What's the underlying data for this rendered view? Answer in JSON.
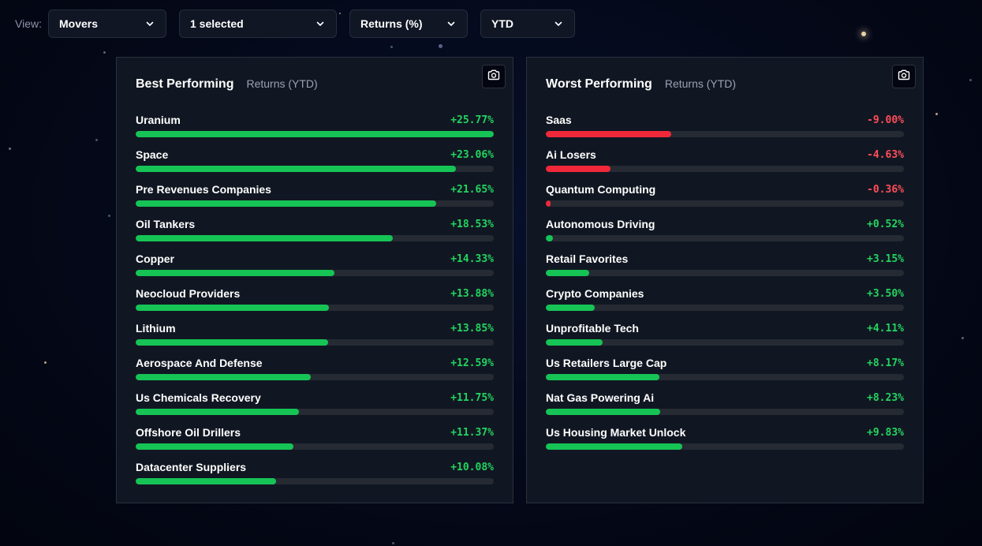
{
  "toolbar": {
    "view_label": "View:",
    "dropdowns": [
      {
        "name": "view-dropdown",
        "value": "Movers"
      },
      {
        "name": "selection-dropdown",
        "value": "1 selected"
      },
      {
        "name": "metric-dropdown",
        "value": "Returns (%)"
      },
      {
        "name": "period-dropdown",
        "value": "YTD"
      }
    ]
  },
  "colors": {
    "positive": "#16c456",
    "negative": "#f0283a",
    "positive_text": "#22d460",
    "negative_text": "#ff4d5a"
  },
  "best": {
    "title": "Best Performing",
    "subtitle": "Returns (YTD)",
    "camera_icon": "camera-icon",
    "max_abs": 25.77,
    "items": [
      {
        "name": "Uranium",
        "value": 25.77,
        "label": "+25.77%"
      },
      {
        "name": "Space",
        "value": 23.06,
        "label": "+23.06%"
      },
      {
        "name": "Pre Revenues Companies",
        "value": 21.65,
        "label": "+21.65%"
      },
      {
        "name": "Oil Tankers",
        "value": 18.53,
        "label": "+18.53%"
      },
      {
        "name": "Copper",
        "value": 14.33,
        "label": "+14.33%"
      },
      {
        "name": "Neocloud Providers",
        "value": 13.88,
        "label": "+13.88%"
      },
      {
        "name": "Lithium",
        "value": 13.85,
        "label": "+13.85%"
      },
      {
        "name": "Aerospace And Defense",
        "value": 12.59,
        "label": "+12.59%"
      },
      {
        "name": "Us Chemicals Recovery",
        "value": 11.75,
        "label": "+11.75%"
      },
      {
        "name": "Offshore Oil Drillers",
        "value": 11.37,
        "label": "+11.37%"
      },
      {
        "name": "Datacenter Suppliers",
        "value": 10.08,
        "label": "+10.08%"
      }
    ]
  },
  "worst": {
    "title": "Worst Performing",
    "subtitle": "Returns (YTD)",
    "camera_icon": "camera-icon",
    "max_abs": 25.77,
    "items": [
      {
        "name": "Saas",
        "value": -9.0,
        "label": "-9.00%"
      },
      {
        "name": "Ai Losers",
        "value": -4.63,
        "label": "-4.63%"
      },
      {
        "name": "Quantum Computing",
        "value": -0.36,
        "label": "-0.36%"
      },
      {
        "name": "Autonomous Driving",
        "value": 0.52,
        "label": "+0.52%"
      },
      {
        "name": "Retail Favorites",
        "value": 3.15,
        "label": "+3.15%"
      },
      {
        "name": "Crypto Companies",
        "value": 3.5,
        "label": "+3.50%"
      },
      {
        "name": "Unprofitable Tech",
        "value": 4.11,
        "label": "+4.11%"
      },
      {
        "name": "Us Retailers Large Cap",
        "value": 8.17,
        "label": "+8.17%"
      },
      {
        "name": "Nat Gas Powering Ai",
        "value": 8.23,
        "label": "+8.23%"
      },
      {
        "name": "Us Housing Market Unlock",
        "value": 9.83,
        "label": "+9.83%"
      }
    ]
  }
}
